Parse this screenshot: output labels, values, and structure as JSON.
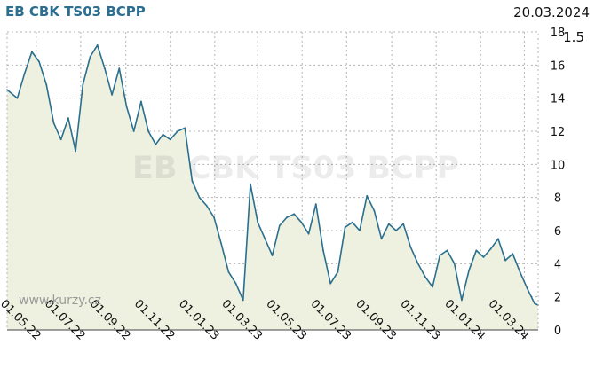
{
  "header": {
    "title": "EB CBK TS03 BCPP",
    "date": "20.03.2024",
    "last_value": "1.5"
  },
  "watermark": "EB CBK TS03 BCPP",
  "source": "www.kurzy.cz",
  "colors": {
    "line": "#2b6f8e",
    "fill": "#eef0e0",
    "grid": "#b4b4b4",
    "title": "#2c6e8f"
  },
  "chart_data": {
    "type": "area",
    "title": "EB CBK TS03 BCPP",
    "xlabel": "",
    "ylabel": "",
    "ylim": [
      0,
      18
    ],
    "y_ticks": [
      "0",
      "2",
      "4",
      "6",
      "8",
      "10",
      "12",
      "14",
      "16",
      "18"
    ],
    "x_ticks": [
      "01.05.22",
      "01.07.22",
      "01.09.22",
      "01.11.22",
      "01.01.23",
      "01.03.23",
      "01.05.23",
      "01.07.23",
      "01.09.23",
      "01.11.23",
      "01.01.24",
      "01.03.24"
    ],
    "grid": true,
    "y_axis_side": "right",
    "x": [
      "2022-03-22",
      "2022-04-05",
      "2022-04-15",
      "2022-04-25",
      "2022-05-05",
      "2022-05-15",
      "2022-05-25",
      "2022-06-04",
      "2022-06-14",
      "2022-06-24",
      "2022-07-04",
      "2022-07-14",
      "2022-07-24",
      "2022-08-03",
      "2022-08-13",
      "2022-08-23",
      "2022-09-02",
      "2022-09-12",
      "2022-09-22",
      "2022-10-02",
      "2022-10-12",
      "2022-10-22",
      "2022-11-01",
      "2022-11-11",
      "2022-11-21",
      "2022-12-01",
      "2022-12-11",
      "2022-12-21",
      "2022-12-31",
      "2023-01-10",
      "2023-01-20",
      "2023-01-30",
      "2023-02-09",
      "2023-02-19",
      "2023-03-01",
      "2023-03-11",
      "2023-03-21",
      "2023-03-31",
      "2023-04-10",
      "2023-04-20",
      "2023-04-30",
      "2023-05-10",
      "2023-05-20",
      "2023-05-30",
      "2023-06-09",
      "2023-06-19",
      "2023-06-29",
      "2023-07-09",
      "2023-07-19",
      "2023-07-29",
      "2023-08-08",
      "2023-08-18",
      "2023-08-28",
      "2023-09-07",
      "2023-09-17",
      "2023-09-27",
      "2023-10-07",
      "2023-10-17",
      "2023-10-27",
      "2023-11-06",
      "2023-11-16",
      "2023-11-26",
      "2023-12-06",
      "2023-12-16",
      "2023-12-26",
      "2024-01-05",
      "2024-01-15",
      "2024-01-25",
      "2024-02-04",
      "2024-02-14",
      "2024-02-24",
      "2024-03-05",
      "2024-03-15",
      "2024-03-20"
    ],
    "series": [
      {
        "values": [
          14.5,
          14.0,
          15.5,
          16.8,
          16.2,
          14.8,
          12.5,
          11.5,
          12.8,
          10.8,
          14.8,
          16.5,
          17.2,
          15.8,
          14.2,
          15.8,
          13.5,
          12.0,
          13.8,
          12.0,
          11.2,
          11.8,
          11.5,
          12.0,
          12.2,
          9.0,
          8.0,
          7.5,
          6.8,
          5.2,
          3.5,
          2.8,
          1.8,
          8.8,
          6.5,
          5.5,
          4.5,
          6.3,
          6.8,
          7.0,
          6.5,
          5.8,
          7.6,
          4.8,
          2.8,
          3.5,
          6.2,
          6.5,
          6.0,
          8.1,
          7.2,
          5.5,
          6.4,
          6.0,
          6.4,
          5.0,
          4.0,
          3.2,
          2.6,
          4.5,
          4.8,
          4.0,
          1.8,
          3.6,
          4.8,
          4.4,
          4.9,
          5.5,
          4.2,
          4.6,
          3.5,
          2.5,
          1.6,
          1.5
        ]
      }
    ]
  }
}
